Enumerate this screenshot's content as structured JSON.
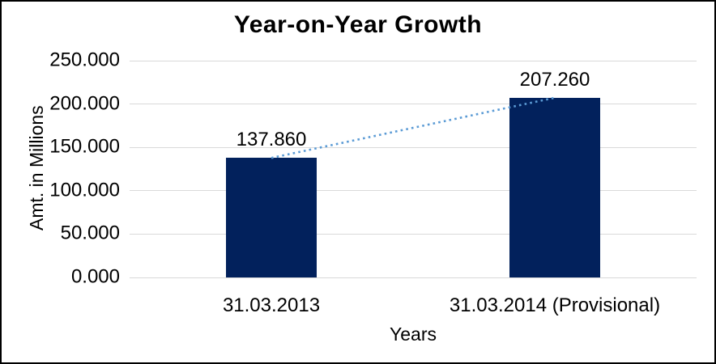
{
  "chart_data": {
    "type": "bar",
    "title": "Year-on-Year Growth",
    "xlabel": "Years",
    "ylabel": "Amt. in Millions",
    "categories": [
      "31.03.2013",
      "31.03.2014 (Provisional)"
    ],
    "values": [
      137.86,
      207.26
    ],
    "value_labels": [
      "137.860",
      "207.260"
    ],
    "ylim": [
      0,
      250
    ],
    "yticks": [
      0,
      50,
      100,
      150,
      200,
      250
    ],
    "ytick_labels": [
      "0.000",
      "50.000",
      "100.000",
      "150.000",
      "200.000",
      "250.000"
    ],
    "grid": true,
    "legend": false,
    "trendline": {
      "type": "linear",
      "style": "dotted",
      "color": "#5B9BD5",
      "from_value": 137.86,
      "to_value": 207.26
    },
    "colors": {
      "bar": "#02215C",
      "gridline": "#D9D9D9",
      "text": "#000000",
      "background": "#FFFFFF",
      "border": "#000000"
    }
  }
}
